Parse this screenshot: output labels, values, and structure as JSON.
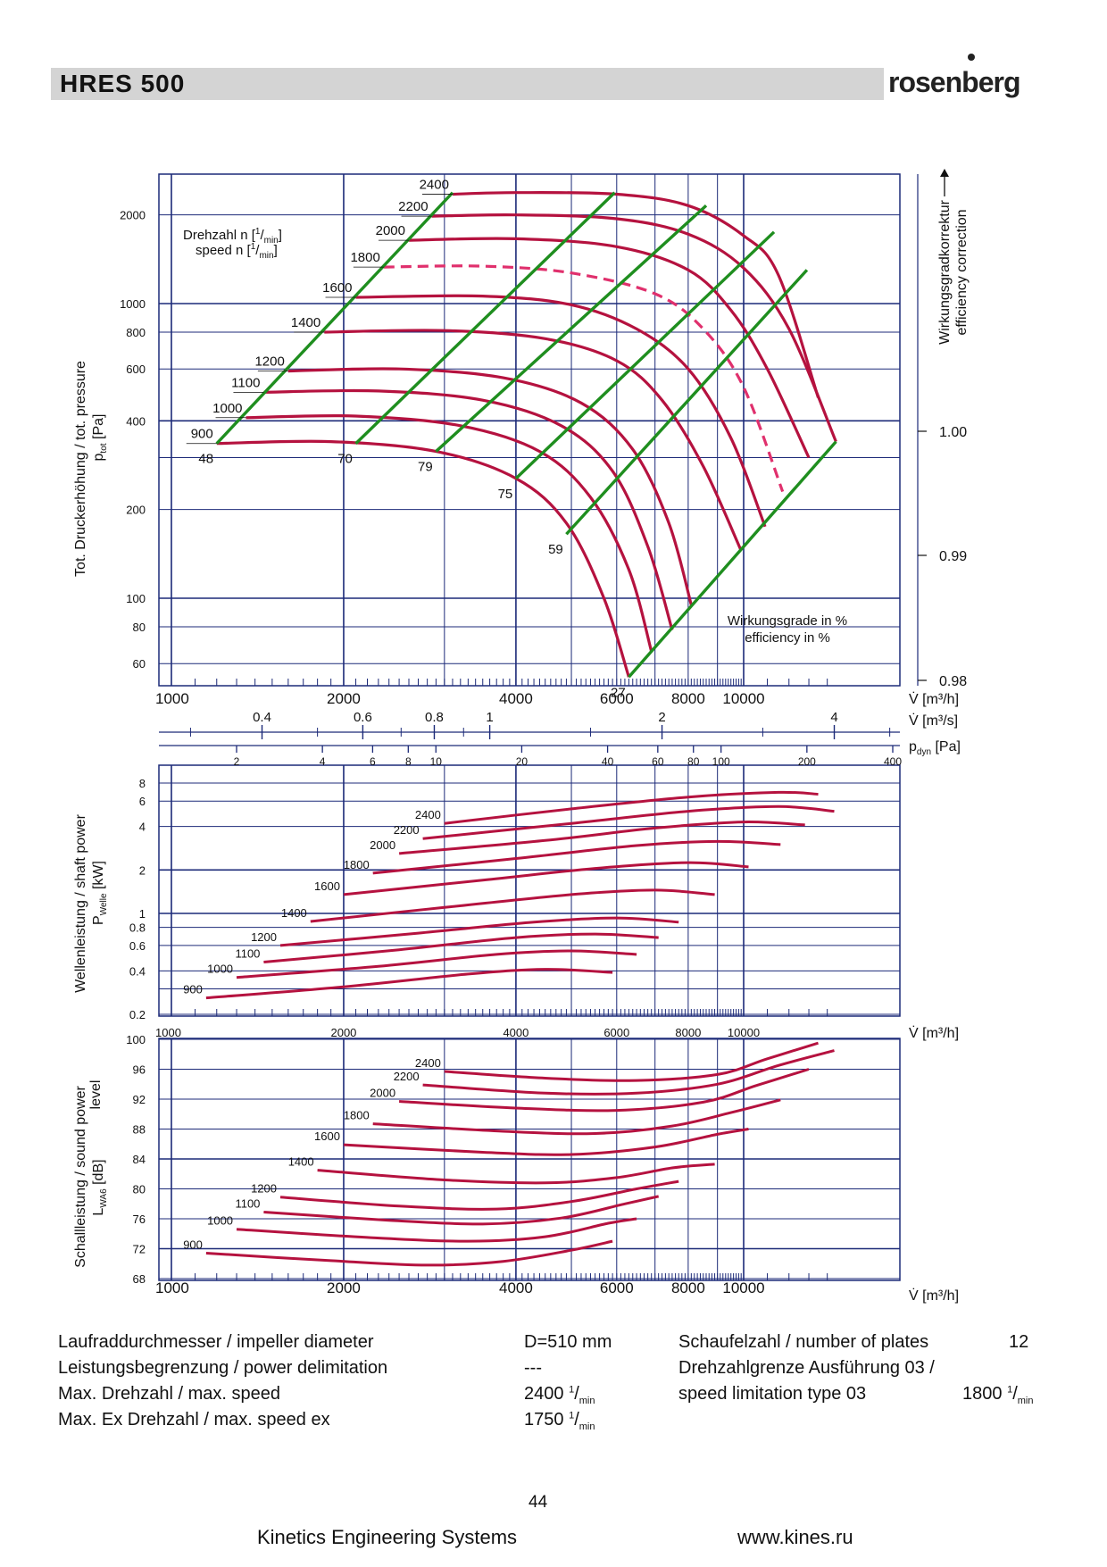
{
  "header": {
    "title": "HRES  500",
    "logo": "rosenberg"
  },
  "chart_data": [
    {
      "type": "line",
      "name": "pressure",
      "ylabel_main": "Tot. Druckerhöhung / tot. pressure",
      "ylabel_sub": "p",
      "ylabel_sub_index": "tot",
      "ylabel_unit": " [Pa]",
      "right_label_1": "Wirkungsgradkorrektur",
      "right_label_2": "efficiency correction",
      "right_ticks": [
        "1.00",
        "0.99",
        "0.98"
      ],
      "speed_label_1": "Drehzahl n [",
      "speed_label_2": "speed n [",
      "speed_unit_num": "1",
      "speed_unit_den": "min",
      "speed_unit_close": "]",
      "eff_label_1": "Wirkungsgrade in %",
      "eff_label_2": "efficiency in %",
      "eff_labels": [
        "48",
        "70",
        "79",
        "75",
        "59",
        "27"
      ],
      "y_ticks": [
        "2000",
        "1000",
        "800",
        "600",
        "400",
        "200",
        "100",
        "80",
        "60"
      ],
      "x_ticks": [
        "1000",
        "2000",
        "4000",
        "6000",
        "8000",
        "10000"
      ],
      "x_unit": "V̇ [m³/h]",
      "ms_ticks": [
        "0.4",
        "0.6",
        "0.8",
        "1",
        "2",
        "4"
      ],
      "ms_unit": "V̇ [m³/s]",
      "pdyn_ticks": [
        "2",
        "4",
        "6",
        "8",
        "10",
        "20",
        "40",
        "60",
        "80",
        "100",
        "200",
        "400"
      ],
      "pdyn_unit_main": "p",
      "pdyn_unit_index": "dyn",
      "pdyn_unit_close": " [Pa]",
      "speed_labels": [
        "2400",
        "2200",
        "2000",
        "1800",
        "1600",
        "1400",
        "1200",
        "1100",
        "1000",
        "900"
      ],
      "series": [
        {
          "speed": 2400,
          "x": [
            3100,
            4000,
            6000,
            8000,
            10000,
            11500,
            13500
          ],
          "y": [
            2350,
            2380,
            2350,
            2150,
            1700,
            1250,
            480
          ]
        },
        {
          "speed": 2200,
          "x": [
            2850,
            4000,
            6000,
            8000,
            10000,
            12000,
            14500
          ],
          "y": [
            1980,
            2000,
            1940,
            1720,
            1320,
            820,
            340
          ]
        },
        {
          "speed": 2000,
          "x": [
            2600,
            4000,
            6000,
            8000,
            9500,
            11000,
            13000
          ],
          "y": [
            1640,
            1660,
            1560,
            1300,
            950,
            600,
            300
          ]
        },
        {
          "speed": 1800,
          "x": [
            2350,
            3500,
            5000,
            7000,
            8500,
            10000,
            11700
          ],
          "y": [
            1330,
            1340,
            1270,
            1080,
            820,
            520,
            230
          ]
        },
        {
          "speed": 1600,
          "x": [
            2100,
            3500,
            5000,
            6500,
            8000,
            9500,
            10900
          ],
          "y": [
            1050,
            1060,
            990,
            820,
            600,
            350,
            175
          ]
        },
        {
          "speed": 1400,
          "x": [
            1850,
            3000,
            4500,
            6000,
            7200,
            8500,
            9900
          ],
          "y": [
            800,
            810,
            760,
            640,
            470,
            280,
            145
          ]
        },
        {
          "speed": 1200,
          "x": [
            1600,
            2500,
            3800,
            5200,
            6400,
            7400,
            8100
          ],
          "y": [
            590,
            600,
            560,
            460,
            320,
            180,
            95
          ]
        },
        {
          "speed": 1100,
          "x": [
            1450,
            2300,
            3500,
            4800,
            5900,
            6800,
            7500
          ],
          "y": [
            500,
            505,
            470,
            385,
            270,
            150,
            78
          ]
        },
        {
          "speed": 1000,
          "x": [
            1350,
            2100,
            3200,
            4400,
            5400,
            6300,
            6900
          ],
          "y": [
            410,
            415,
            385,
            315,
            220,
            125,
            66
          ]
        },
        {
          "speed": 900,
          "x": [
            1200,
            1900,
            2900,
            4000,
            4900,
            5700,
            6300
          ],
          "y": [
            335,
            340,
            315,
            255,
            180,
            100,
            54
          ]
        }
      ],
      "efficiency_lines": [
        {
          "label": "48",
          "x": [
            1200,
            3100
          ],
          "y": [
            335,
            2380
          ]
        },
        {
          "label": "70",
          "x": [
            2100,
            5950
          ],
          "y": [
            335,
            2380
          ]
        },
        {
          "label": "79",
          "x": [
            2900,
            8600
          ],
          "y": [
            315,
            2150
          ]
        },
        {
          "label": "75",
          "x": [
            4000,
            11300
          ],
          "y": [
            255,
            1750
          ]
        },
        {
          "label": "59",
          "x": [
            4900,
            12900
          ],
          "y": [
            165,
            1300
          ]
        },
        {
          "label": "27",
          "x": [
            6300,
            14500
          ],
          "y": [
            54,
            340
          ]
        }
      ]
    },
    {
      "type": "line",
      "name": "shaft_power",
      "ylabel_1": "Wellenleistung / shaft power",
      "ylabel_2": "P",
      "ylabel_2_index": "Welle",
      "ylabel_2_unit": " [kW]",
      "y_ticks": [
        "8",
        "6",
        "4",
        "2",
        "1",
        "0.8",
        "0.6",
        "0.4",
        "0.2"
      ],
      "x_ticks": [
        "1000",
        "2000",
        "4000",
        "6000",
        "8000",
        "10000"
      ],
      "x_unit": "V̇ [m³/h]",
      "speed_labels": [
        "2400",
        "2200",
        "2000",
        "1800",
        "1600",
        "1400",
        "1200",
        "1100",
        "1000",
        "900"
      ],
      "series": [
        {
          "speed": 2400,
          "x": [
            3000,
            5000,
            8000,
            11500,
            13500
          ],
          "y": [
            4.2,
            5.3,
            6.4,
            6.9,
            6.7
          ]
        },
        {
          "speed": 2200,
          "x": [
            2750,
            5000,
            8000,
            11500,
            14400
          ],
          "y": [
            3.3,
            4.2,
            5.1,
            5.5,
            5.1
          ]
        },
        {
          "speed": 2000,
          "x": [
            2500,
            4500,
            7000,
            10000,
            12800
          ],
          "y": [
            2.6,
            3.2,
            3.9,
            4.3,
            4.1
          ]
        },
        {
          "speed": 1800,
          "x": [
            2250,
            4000,
            6500,
            9000,
            11600
          ],
          "y": [
            1.9,
            2.4,
            2.95,
            3.15,
            3.0
          ]
        },
        {
          "speed": 1600,
          "x": [
            2000,
            3500,
            5500,
            8000,
            10200
          ],
          "y": [
            1.35,
            1.7,
            2.05,
            2.25,
            2.1
          ]
        },
        {
          "speed": 1400,
          "x": [
            1750,
            3000,
            5000,
            7000,
            8900
          ],
          "y": [
            0.88,
            1.1,
            1.35,
            1.45,
            1.35
          ]
        },
        {
          "speed": 1200,
          "x": [
            1550,
            2700,
            4300,
            6000,
            7700
          ],
          "y": [
            0.6,
            0.73,
            0.87,
            0.93,
            0.87
          ]
        },
        {
          "speed": 1100,
          "x": [
            1450,
            2500,
            4000,
            5500,
            7100
          ],
          "y": [
            0.46,
            0.56,
            0.68,
            0.72,
            0.68
          ]
        },
        {
          "speed": 1000,
          "x": [
            1300,
            2300,
            3700,
            5000,
            6500
          ],
          "y": [
            0.36,
            0.43,
            0.52,
            0.55,
            0.52
          ]
        },
        {
          "speed": 900,
          "x": [
            1150,
            2000,
            3300,
            4500,
            5900
          ],
          "y": [
            0.26,
            0.31,
            0.38,
            0.41,
            0.39
          ]
        }
      ]
    },
    {
      "type": "line",
      "name": "sound_power",
      "ylabel_1": "Schallleistung / sound power",
      "ylabel_1b": "level",
      "ylabel_2": "L",
      "ylabel_2_index": "WA6",
      "ylabel_2_unit": " [dB]",
      "y_ticks": [
        "100",
        "96",
        "92",
        "88",
        "84",
        "80",
        "76",
        "72",
        "68"
      ],
      "x_ticks": [
        "1000",
        "2000",
        "4000",
        "6000",
        "8000",
        "10000"
      ],
      "x_unit": "V̇ [m³/h]",
      "speed_labels": [
        "2400",
        "2200",
        "2000",
        "1800",
        "1600",
        "1400",
        "1200",
        "1100",
        "1000",
        "900"
      ],
      "series": [
        {
          "speed": 2400,
          "x": [
            3000,
            4500,
            6500,
            9000,
            11000,
            13500
          ],
          "y": [
            95.7,
            94.8,
            94.5,
            95.3,
            97.4,
            99.5
          ]
        },
        {
          "speed": 2200,
          "x": [
            2750,
            4500,
            6500,
            9000,
            11500,
            14400
          ],
          "y": [
            93.9,
            92.8,
            92.8,
            94.0,
            96.5,
            98.5
          ]
        },
        {
          "speed": 2000,
          "x": [
            2500,
            4000,
            6000,
            8500,
            10500,
            13000
          ],
          "y": [
            91.7,
            90.8,
            90.5,
            91.6,
            93.8,
            96.0
          ]
        },
        {
          "speed": 1800,
          "x": [
            2250,
            3800,
            5500,
            7500,
            9500,
            11600
          ],
          "y": [
            88.7,
            87.7,
            87.4,
            88.4,
            90.2,
            91.9
          ]
        },
        {
          "speed": 1600,
          "x": [
            2000,
            3500,
            5000,
            7000,
            9000,
            10200
          ],
          "y": [
            85.9,
            84.9,
            84.6,
            85.6,
            87.3,
            88.0
          ]
        },
        {
          "speed": 1400,
          "x": [
            1800,
            3000,
            4500,
            6000,
            7500,
            8900
          ],
          "y": [
            82.5,
            81.2,
            80.8,
            81.5,
            82.8,
            83.3
          ]
        },
        {
          "speed": 1200,
          "x": [
            1550,
            2500,
            3700,
            5000,
            6500,
            7700
          ],
          "y": [
            78.9,
            77.7,
            77.3,
            78.3,
            80.0,
            81.0
          ]
        },
        {
          "speed": 1100,
          "x": [
            1450,
            2400,
            3500,
            4800,
            6200,
            7100
          ],
          "y": [
            76.9,
            75.8,
            75.3,
            76.1,
            78.0,
            79.0
          ]
        },
        {
          "speed": 1000,
          "x": [
            1300,
            2200,
            3300,
            4500,
            5800,
            6500
          ],
          "y": [
            74.6,
            73.5,
            73.0,
            73.6,
            75.4,
            76.0
          ]
        },
        {
          "speed": 900,
          "x": [
            1150,
            1900,
            2800,
            3800,
            5000,
            5900
          ],
          "y": [
            71.4,
            70.4,
            69.8,
            70.3,
            71.8,
            73.0
          ]
        }
      ]
    }
  ],
  "specs": {
    "impeller_label": "Laufraddurchmesser / impeller diameter",
    "impeller_value": "D=510 mm",
    "power_label": "Leistungsbegrenzung / power delimitation",
    "power_value": "---",
    "maxspeed_label": "Max. Drehzahl / max. speed",
    "maxspeed_value": "2400",
    "maxex_label": "Max. Ex Drehzahl / max. speed ex",
    "maxex_value": "1750",
    "unit_num": "1",
    "unit_den": "min",
    "plates_label": "Schaufelzahl / number of plates",
    "plates_value": "12",
    "limit_label_1": "Drehzahlgrenze Ausführung 03 /",
    "limit_label_2": "speed limitation type 03",
    "limit_value": "1800"
  },
  "page_number": "44",
  "footer": {
    "company": "Kinetics Engineering Systems",
    "website": "www.kines.ru"
  }
}
